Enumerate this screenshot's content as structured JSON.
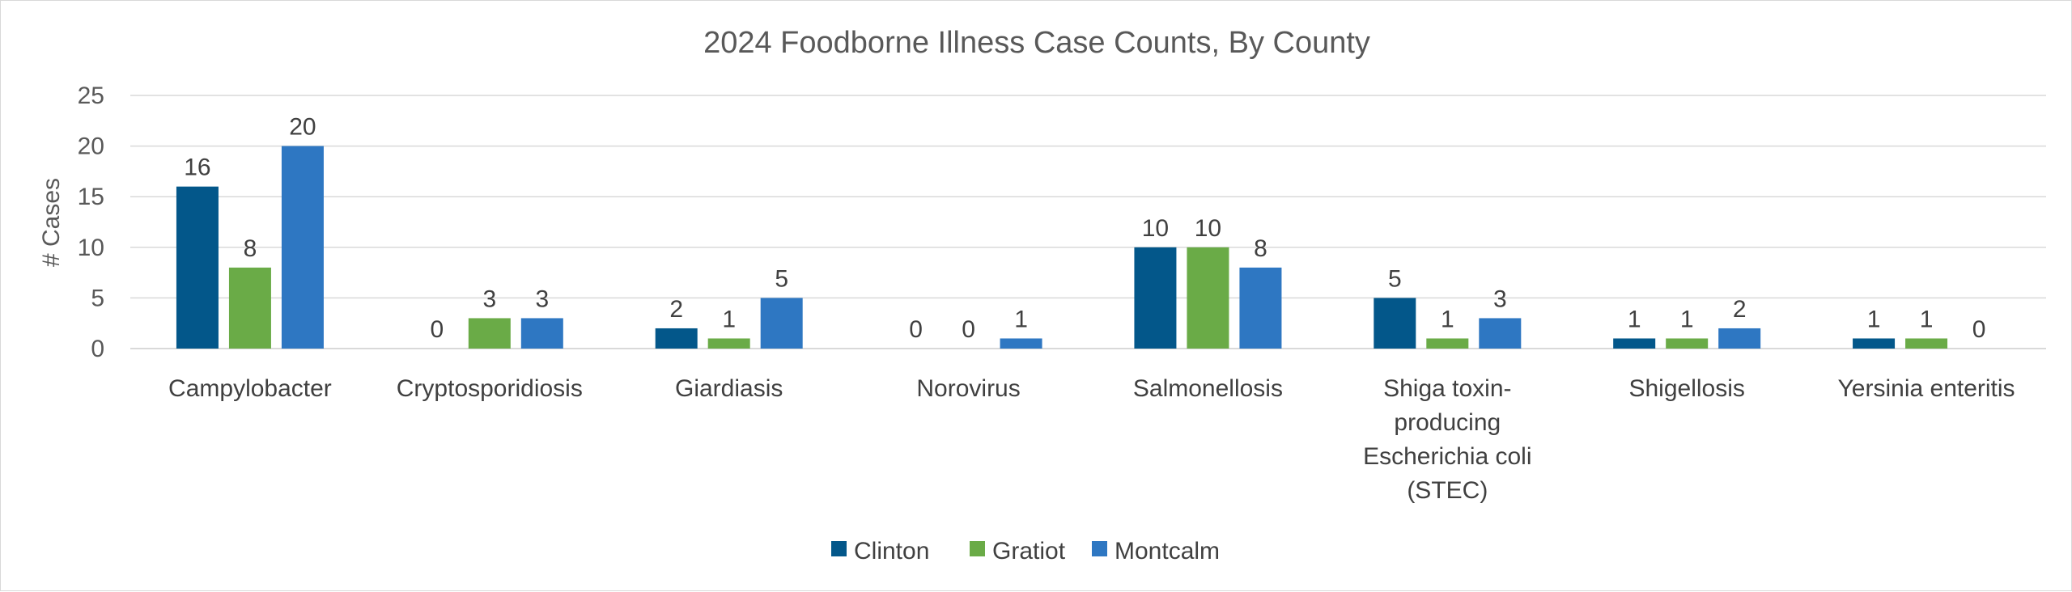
{
  "chart_data": {
    "type": "bar",
    "title": "2024 Foodborne Illness Case Counts, By County",
    "xlabel": "",
    "ylabel": "# Cases",
    "ylim": [
      0,
      25
    ],
    "yticks": [
      0,
      5,
      10,
      15,
      20,
      25
    ],
    "grid": true,
    "legend_position": "bottom",
    "categories": [
      "Campylobacter",
      "Cryptosporidiosis",
      "Giardiasis",
      "Norovirus",
      "Salmonellosis",
      "Shiga toxin-producing Escherichia coli (STEC)",
      "Shigellosis",
      "Yersinia enteritis"
    ],
    "category_lines": [
      [
        "Campylobacter"
      ],
      [
        "Cryptosporidiosis"
      ],
      [
        "Giardiasis"
      ],
      [
        "Norovirus"
      ],
      [
        "Salmonellosis"
      ],
      [
        "Shiga toxin-",
        "producing",
        "Escherichia coli",
        "(STEC)"
      ],
      [
        "Shigellosis"
      ],
      [
        "Yersinia enteritis"
      ]
    ],
    "series": [
      {
        "name": "Clinton",
        "color": "#03578a",
        "values": [
          16,
          0,
          2,
          0,
          10,
          5,
          1,
          1
        ]
      },
      {
        "name": "Gratiot",
        "color": "#6aab47",
        "values": [
          8,
          3,
          1,
          0,
          10,
          1,
          1,
          1
        ]
      },
      {
        "name": "Montcalm",
        "color": "#2e77c2",
        "values": [
          20,
          3,
          5,
          1,
          8,
          3,
          2,
          0
        ]
      }
    ]
  }
}
